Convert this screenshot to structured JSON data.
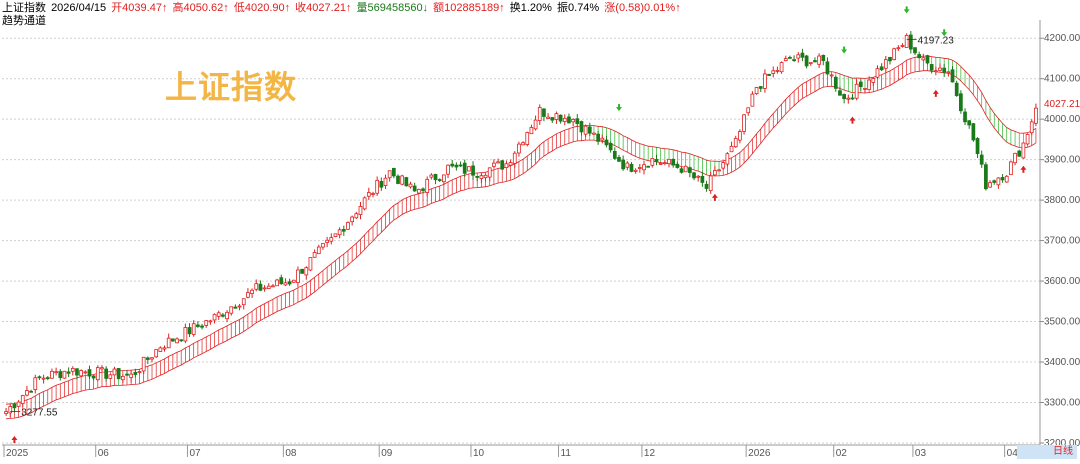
{
  "header": {
    "name": "上证指数",
    "date": "2026/04/15",
    "open": "开4039.47↑",
    "high": "高4050.62↑",
    "low": "低4020.90↑",
    "close": "收4027.21↑",
    "volume": "量569458560↓",
    "amount": "额102885189↑",
    "turnover": "换1.20%",
    "amplitude": "振0.74%",
    "change": "涨(0.58)0.01%↑",
    "indicator": "趋势通道"
  },
  "watermark": "上证指数",
  "last_price_label": "4027.21",
  "timeframe": "日线",
  "colors": {
    "up": "#e02020",
    "down": "#1a7a1a",
    "channel_up": "#e02020",
    "channel_down": "#2bb52b",
    "watermark": "#f3b544",
    "grid": "#d0d0d0"
  },
  "chart_data": {
    "type": "candlestick",
    "title": "",
    "ylim": [
      3195,
      4245
    ],
    "y_ticks": [
      "3200.00",
      "3300.00",
      "3400.00",
      "3500.00",
      "3600.00",
      "3700.00",
      "3800.00",
      "3900.00",
      "4000.00",
      "4100.00",
      "4200.00"
    ],
    "y_tick_values": [
      3200,
      3300,
      3400,
      3500,
      3600,
      3700,
      3800,
      3900,
      4000,
      4100,
      4200
    ],
    "x_ticks": [
      "2025",
      "06",
      "07",
      "08",
      "09",
      "10",
      "11",
      "12",
      "2026",
      "02",
      "03",
      "04"
    ],
    "x_tick_index": [
      0,
      22,
      44,
      67,
      90,
      112,
      133,
      153,
      178,
      199,
      218,
      240
    ],
    "n_bars": 248,
    "price_path_keys": [
      [
        0,
        3278
      ],
      [
        8,
        3360
      ],
      [
        15,
        3380
      ],
      [
        30,
        3365
      ],
      [
        37,
        3440
      ],
      [
        50,
        3510
      ],
      [
        60,
        3580
      ],
      [
        68,
        3600
      ],
      [
        78,
        3700
      ],
      [
        86,
        3800
      ],
      [
        92,
        3870
      ],
      [
        98,
        3820
      ],
      [
        106,
        3880
      ],
      [
        113,
        3870
      ],
      [
        120,
        3890
      ],
      [
        128,
        4020
      ],
      [
        136,
        4000
      ],
      [
        142,
        3950
      ],
      [
        149,
        3880
      ],
      [
        155,
        3900
      ],
      [
        162,
        3880
      ],
      [
        168,
        3830
      ],
      [
        175,
        3940
      ],
      [
        180,
        4080
      ],
      [
        188,
        4150
      ],
      [
        196,
        4140
      ],
      [
        201,
        4050
      ],
      [
        205,
        4080
      ],
      [
        212,
        4150
      ],
      [
        216,
        4197
      ],
      [
        220,
        4140
      ],
      [
        226,
        4120
      ],
      [
        232,
        3950
      ],
      [
        235,
        3840
      ],
      [
        240,
        3870
      ],
      [
        244,
        3940
      ],
      [
        247,
        4027
      ]
    ],
    "annotations": [
      {
        "text": "3277.55",
        "index": 1,
        "value": 3277.55
      },
      {
        "text": "4197.23",
        "index": 216,
        "value": 4197.23
      }
    ],
    "buy_signals": [
      2,
      170,
      203,
      223,
      244
    ],
    "sell_signals": [
      147,
      201,
      216,
      225
    ],
    "last_close": 4027.21
  }
}
